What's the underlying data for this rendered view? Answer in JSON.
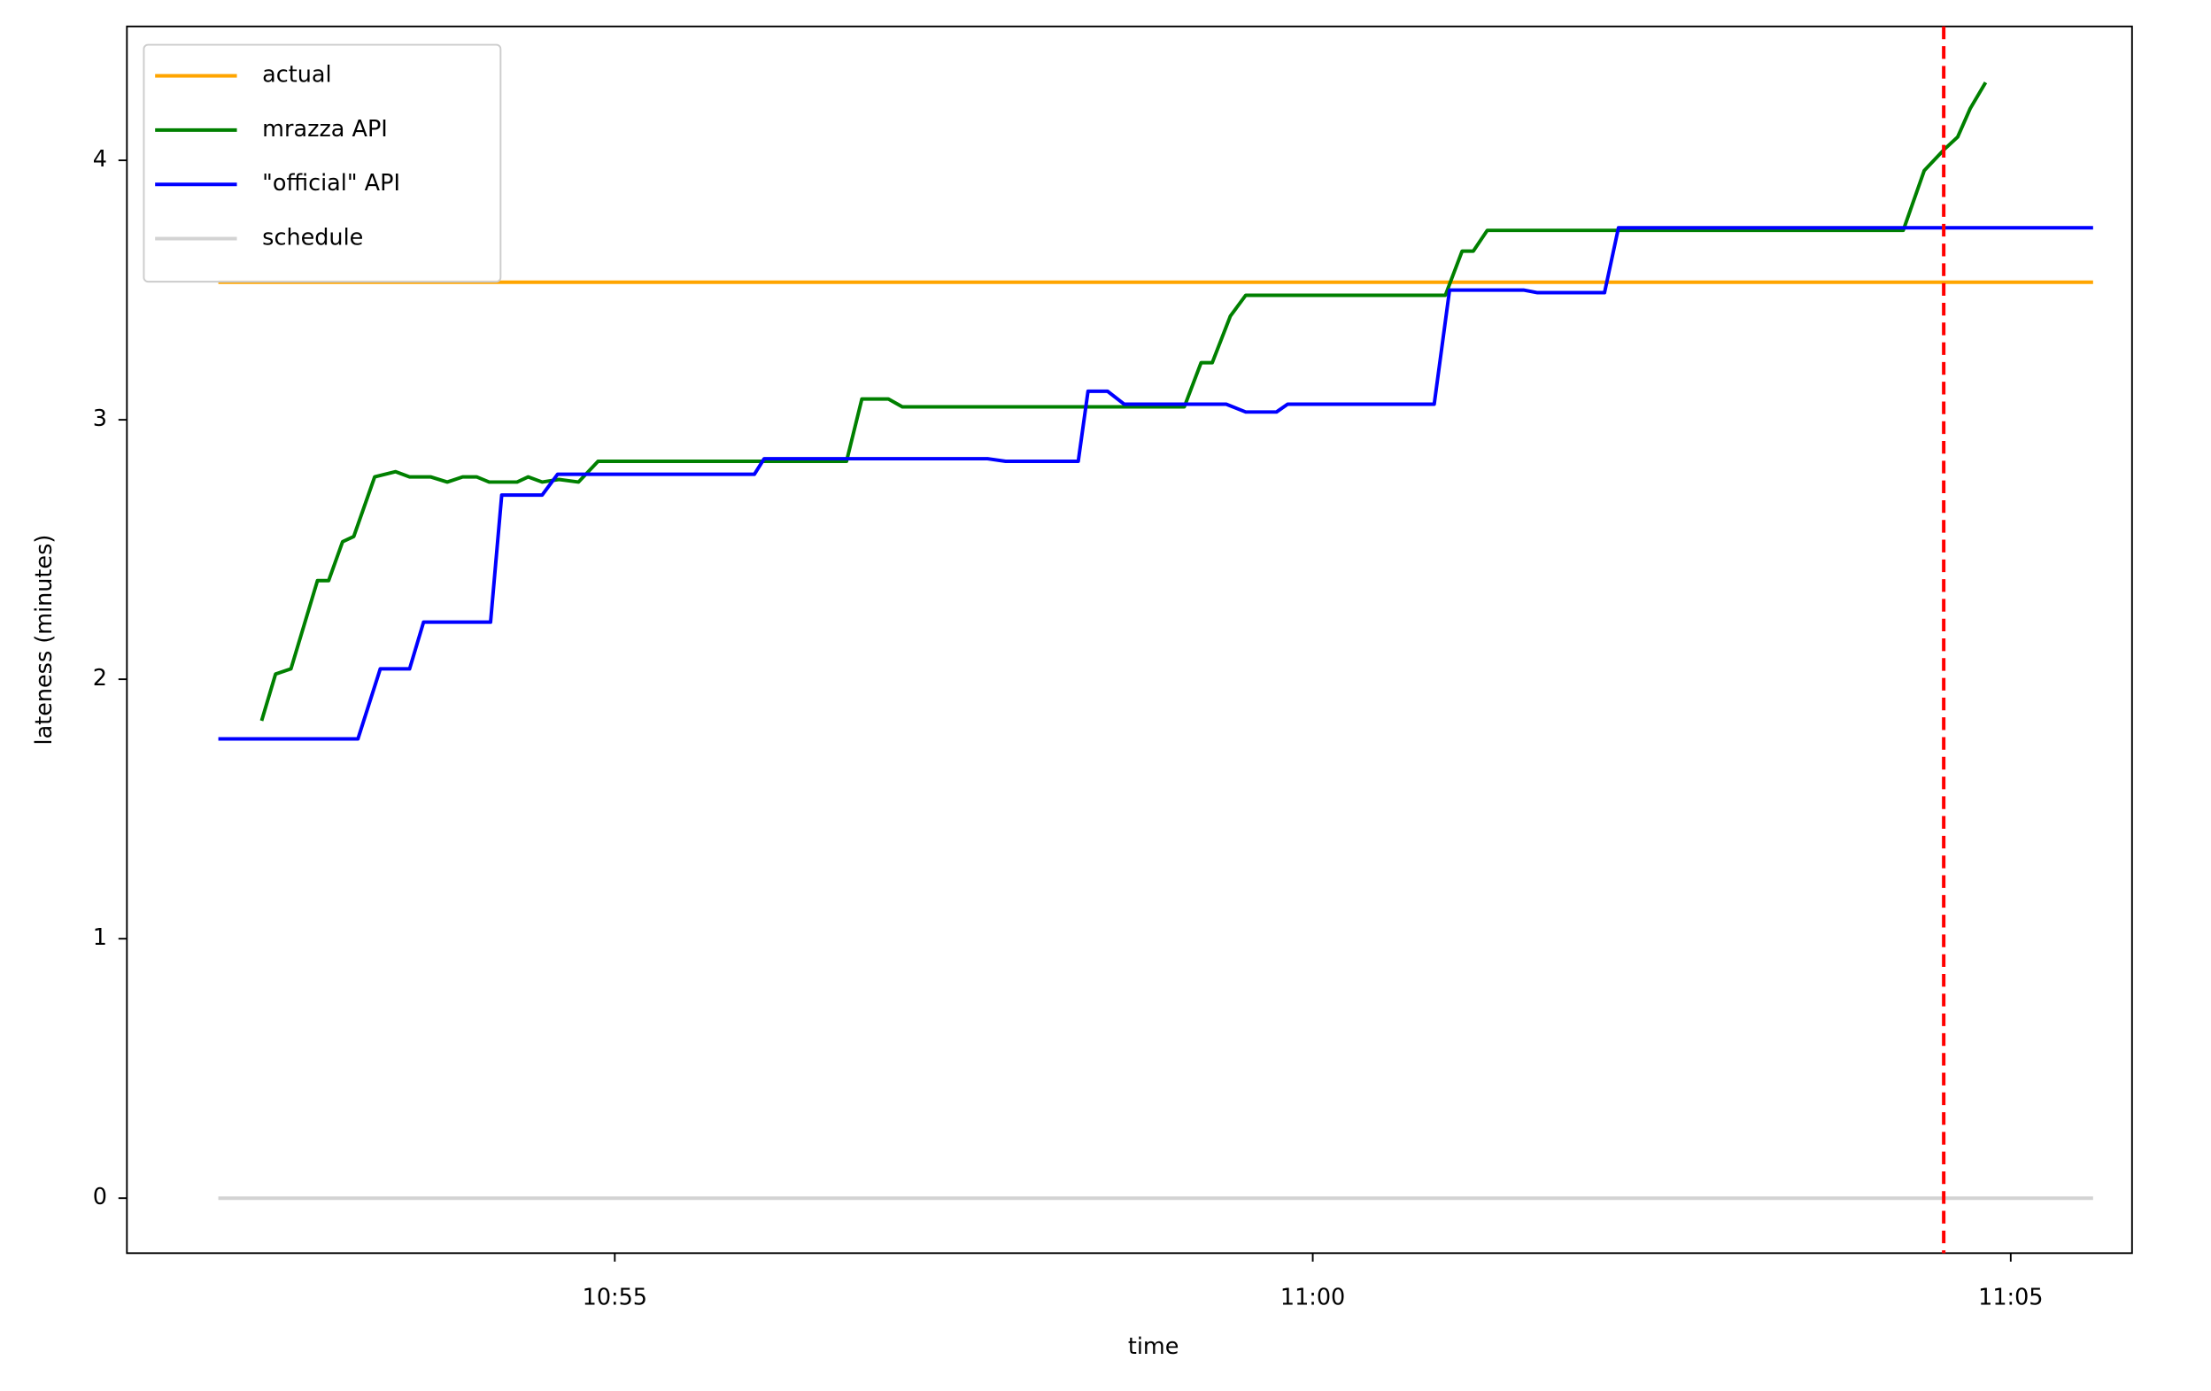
{
  "chart_data": {
    "type": "line",
    "xlabel": "time",
    "ylabel": "lateness (minutes)",
    "xlim": [
      651.505,
      665.869
    ],
    "ylim": [
      -0.212,
      4.516
    ],
    "xticks": [
      {
        "value": 655,
        "label": "10:55"
      },
      {
        "value": 660,
        "label": "11:00"
      },
      {
        "value": 665,
        "label": "11:05"
      }
    ],
    "yticks": [
      0,
      1,
      2,
      3,
      4
    ],
    "grid": false,
    "legend": "upper left",
    "series": [
      {
        "name": "actual",
        "color": "orange",
        "x": [
          652.16,
          665.59
        ],
        "values": [
          3.53,
          3.53
        ]
      },
      {
        "name": "mrazza API",
        "color": "green",
        "x": [
          652.47,
          652.57,
          652.68,
          652.87,
          652.95,
          653.05,
          653.13,
          653.28,
          653.43,
          653.53,
          653.68,
          653.8,
          653.91,
          654.01,
          654.1,
          654.3,
          654.38,
          654.48,
          654.6,
          654.74,
          654.88,
          656.66,
          656.77,
          656.96,
          657.06,
          659.08,
          659.2,
          659.28,
          659.41,
          659.52,
          660.95,
          661.07,
          661.15,
          661.25,
          664.23,
          664.38,
          664.52,
          664.62,
          664.71,
          664.82
        ],
        "values": [
          1.84,
          2.02,
          2.04,
          2.38,
          2.38,
          2.53,
          2.55,
          2.78,
          2.8,
          2.78,
          2.78,
          2.76,
          2.78,
          2.78,
          2.76,
          2.76,
          2.78,
          2.76,
          2.77,
          2.76,
          2.84,
          2.84,
          3.08,
          3.08,
          3.05,
          3.05,
          3.22,
          3.22,
          3.4,
          3.48,
          3.48,
          3.65,
          3.65,
          3.73,
          3.73,
          3.96,
          4.04,
          4.09,
          4.2,
          4.3
        ]
      },
      {
        "name": "\"official\" API",
        "color": "blue",
        "x": [
          652.16,
          653.16,
          653.32,
          653.53,
          653.63,
          654.11,
          654.19,
          654.48,
          654.59,
          656.0,
          656.07,
          657.67,
          657.8,
          658.32,
          658.39,
          658.53,
          658.65,
          659.38,
          659.52,
          659.74,
          659.82,
          660.87,
          660.98,
          661.51,
          661.61,
          662.09,
          662.19,
          665.59
        ],
        "values": [
          1.77,
          1.77,
          2.04,
          2.04,
          2.22,
          2.22,
          2.71,
          2.71,
          2.79,
          2.79,
          2.85,
          2.85,
          2.84,
          2.84,
          3.11,
          3.11,
          3.06,
          3.06,
          3.03,
          3.03,
          3.06,
          3.06,
          3.5,
          3.5,
          3.49,
          3.49,
          3.74,
          3.74
        ]
      },
      {
        "name": "schedule",
        "color": "lightgray",
        "x": [
          652.16,
          665.59
        ],
        "values": [
          0,
          0
        ]
      }
    ],
    "vline": {
      "x": 664.52,
      "color": "red",
      "style": "dashed"
    }
  }
}
